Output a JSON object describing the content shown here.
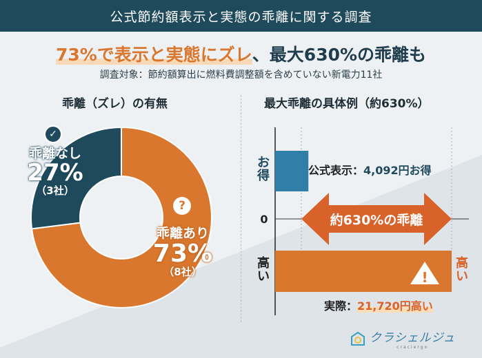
{
  "header": {
    "title": "公式節約額表示と実態の乖離に関する調査"
  },
  "headline": {
    "highlight": "73%で表示と実態にズレ",
    "rest": "、最大630%の乖離も"
  },
  "subtitle": "調査対象：節約額算出に燃料費調整額を含めていない新電力11社",
  "chart_data": [
    {
      "type": "pie",
      "title": "乖離（ズレ）の有無",
      "slices": [
        {
          "label": "乖離あり",
          "percent_label": "73%",
          "count_label": "（8社）",
          "value": 73,
          "count": 8,
          "color": "#d9772e",
          "icon": "question-bubble-icon"
        },
        {
          "label": "乖離なし",
          "percent_label": "27%",
          "count_label": "（3社）",
          "value": 27,
          "count": 3,
          "color": "#1f4a5c",
          "icon": "check-circle-icon"
        }
      ]
    },
    {
      "type": "bar",
      "title": "最大乖離の具体例（約630%）",
      "zero_label": "0",
      "positive_axis_label": "お得",
      "negative_axis_label": "高い",
      "bars": [
        {
          "name": "公式表示",
          "value": 4092,
          "label_prefix": "公式表示：",
          "label_value": "4,092円お得",
          "color": "#2f7fa8"
        },
        {
          "name": "実際",
          "value": -21720,
          "label_prefix": "実際：",
          "label_value": "21,720円高い",
          "color": "#d9772e",
          "end_label": "高い",
          "icon": "warning-icon"
        }
      ],
      "annotation": "約630%の乖離"
    }
  ],
  "logo": {
    "text": "クラシェルジュ",
    "sub": "craciergo"
  }
}
